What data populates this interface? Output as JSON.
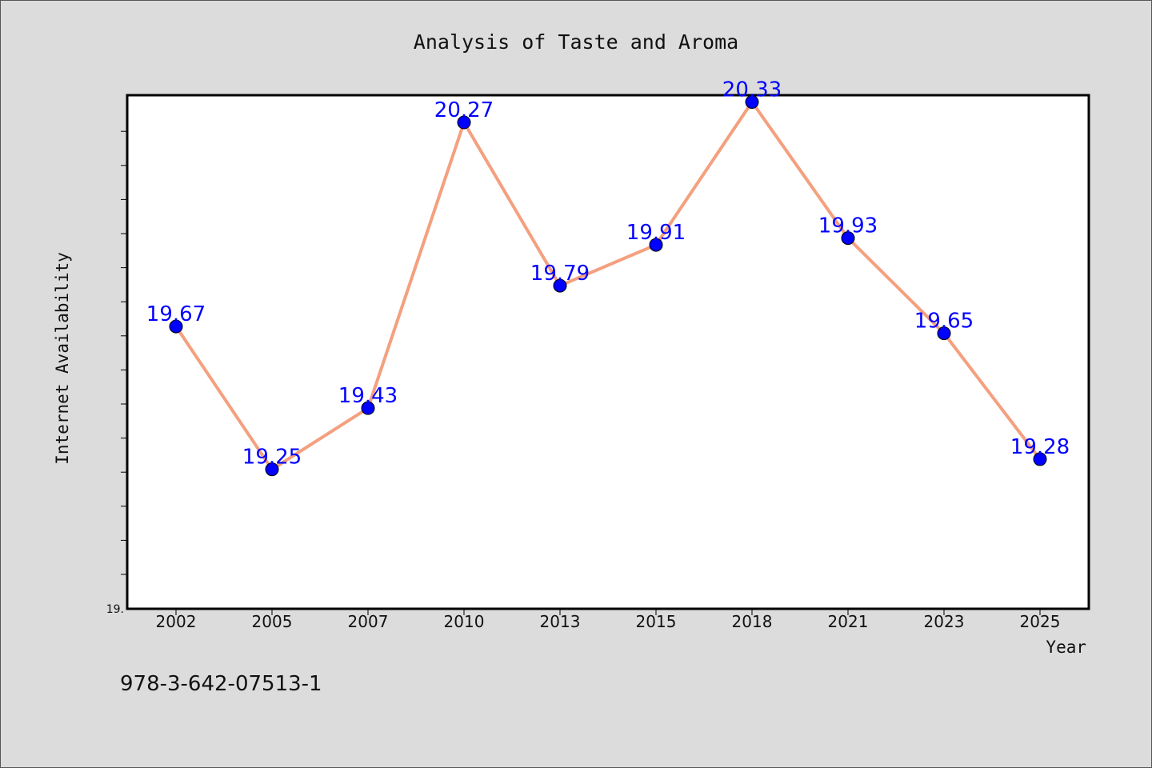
{
  "chart_data": {
    "type": "line",
    "title": "Analysis of Taste and Aroma",
    "xlabel": "Year",
    "ylabel": "Internet Availability",
    "categories": [
      "2002",
      "2005",
      "2007",
      "2010",
      "2013",
      "2015",
      "2018",
      "2021",
      "2023",
      "2025"
    ],
    "series": [
      {
        "values": [
          19.67,
          19.25,
          19.43,
          20.27,
          19.79,
          19.91,
          20.33,
          19.93,
          19.65,
          19.28
        ]
      }
    ],
    "data_labels": [
      "19.67",
      "19.25",
      "19.43",
      "20.27",
      "19.79",
      "19.91",
      "20.33",
      "19.93",
      "19.65",
      "19.28"
    ],
    "ylim": [
      18.84,
      20.35
    ],
    "ytick_labels": [
      "19."
    ],
    "line_color": "#f4a07f",
    "marker_color": "#0000ff",
    "label_color": "#0000ff",
    "grid": false,
    "legend": false
  },
  "footer": {
    "text": "978-3-642-07513-1"
  }
}
